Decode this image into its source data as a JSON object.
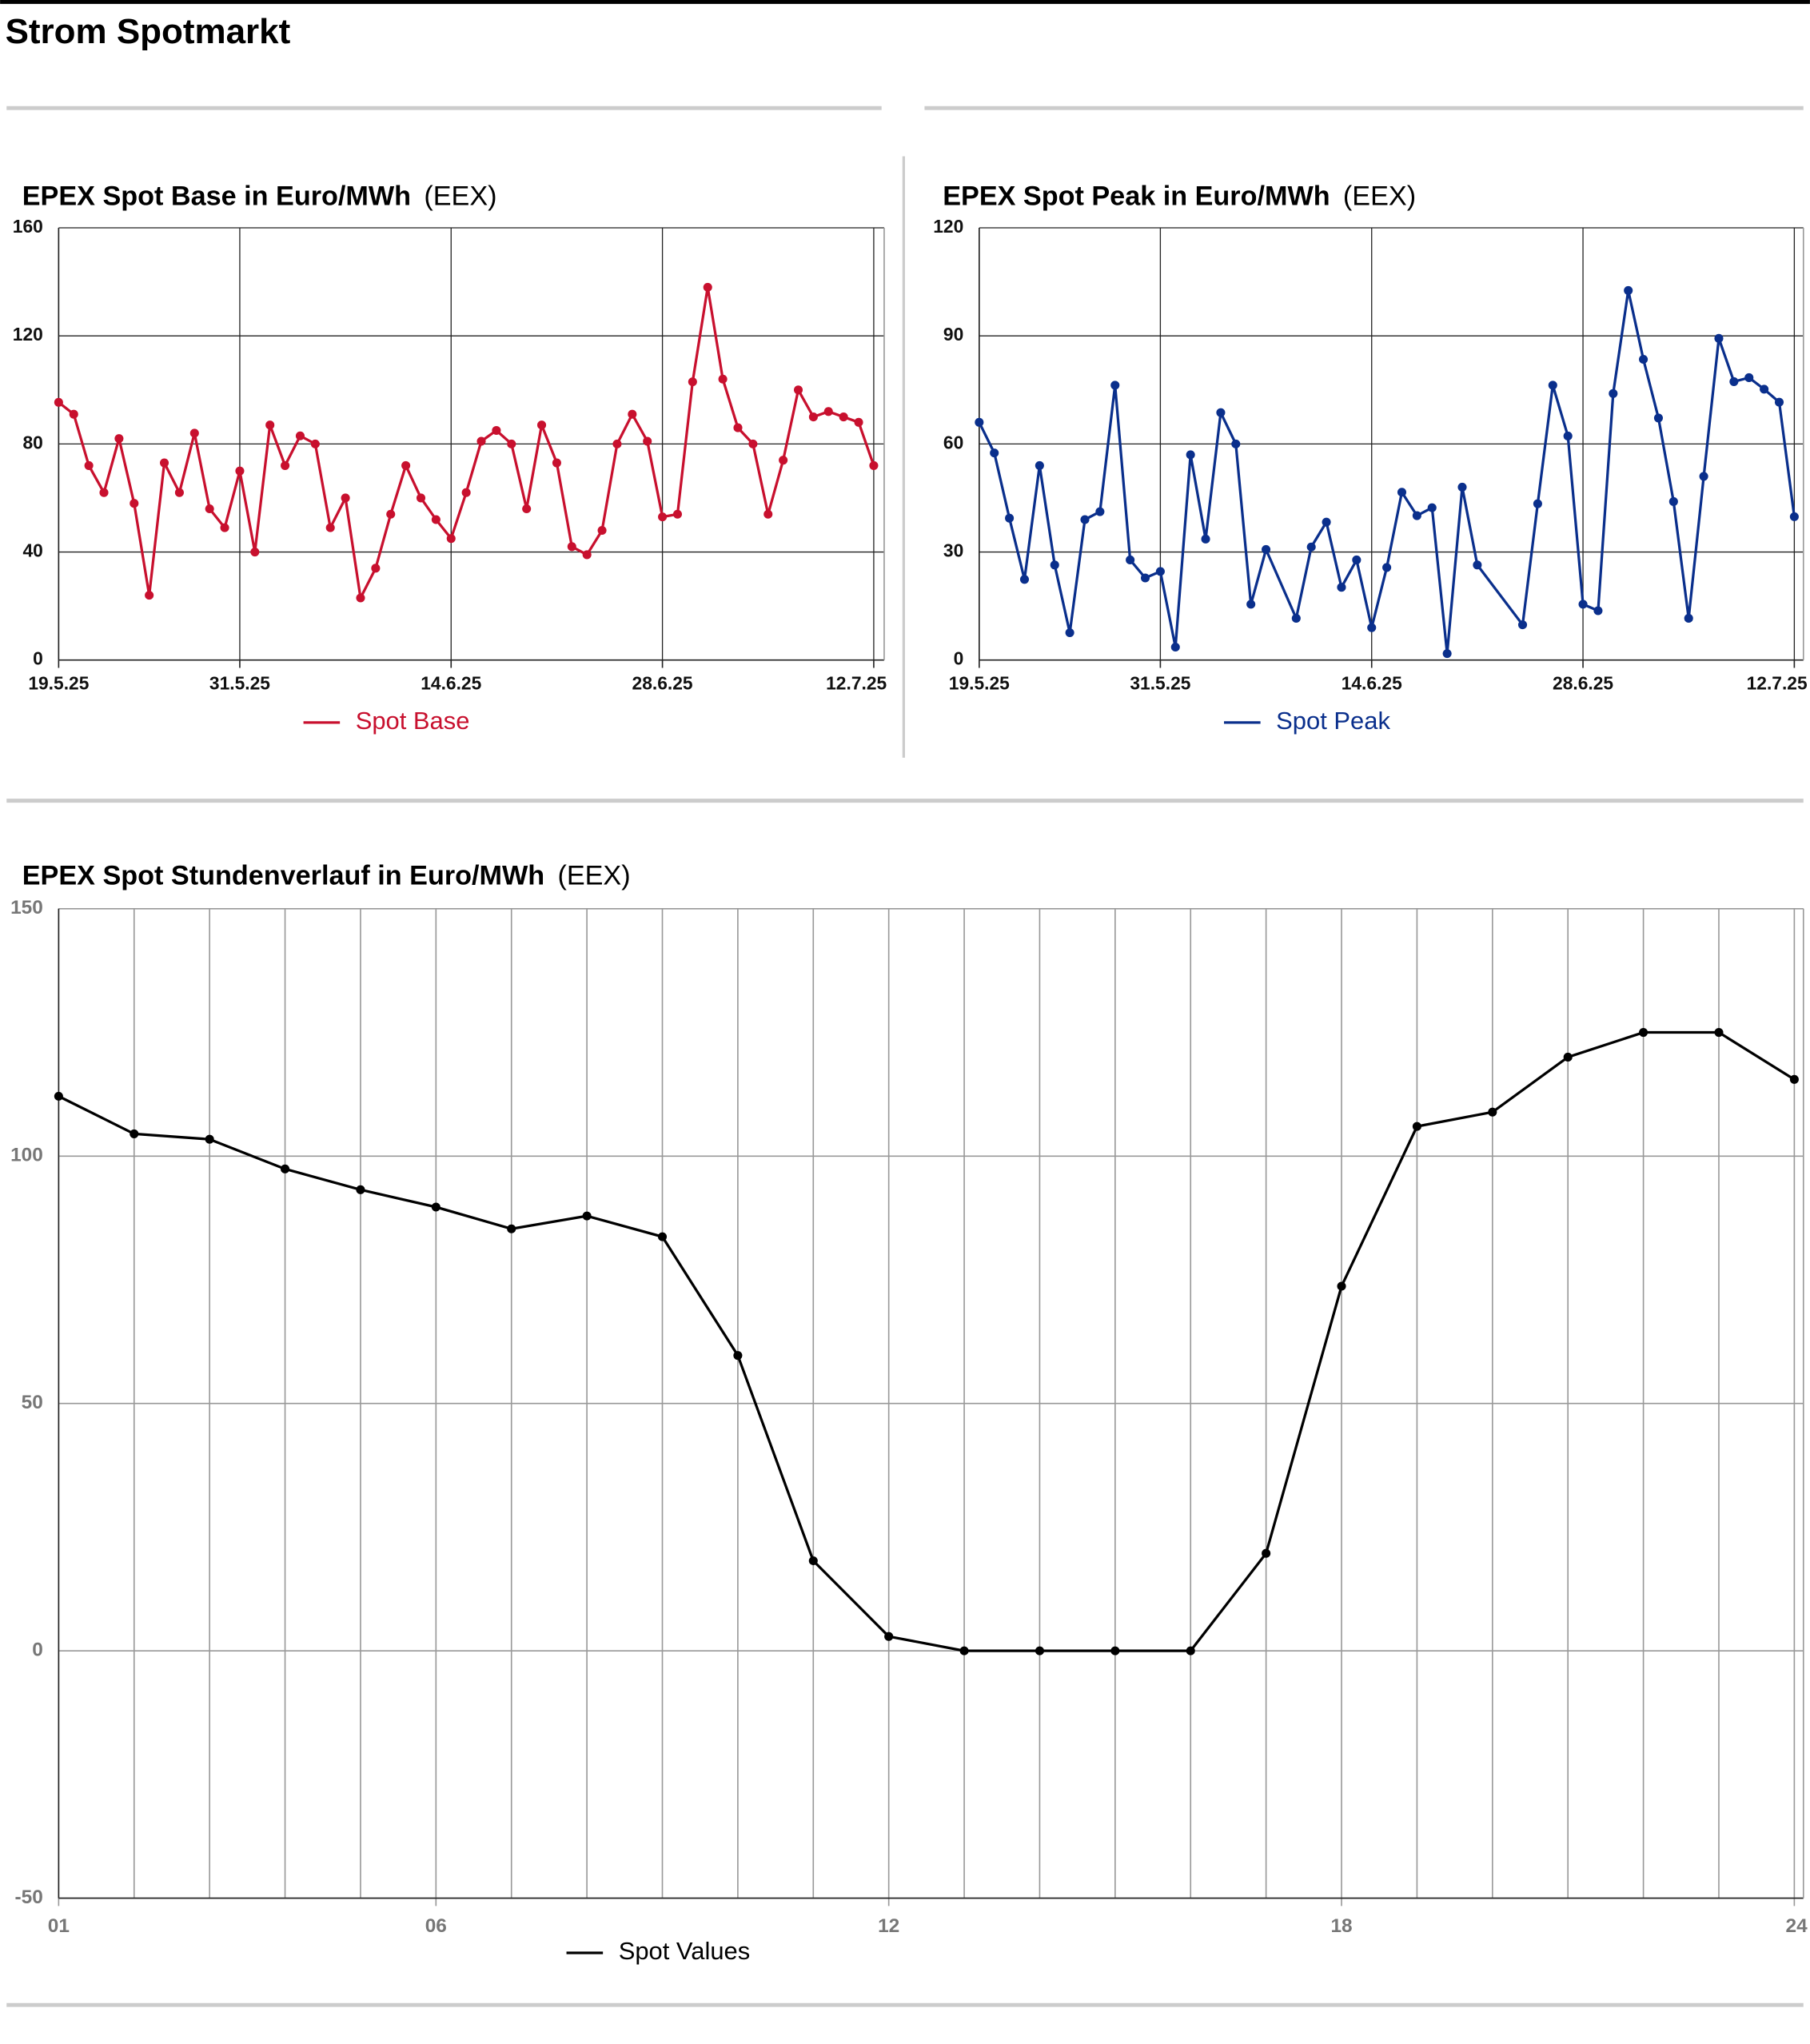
{
  "title": "Strom Spotmarkt",
  "chart_data": [
    {
      "type": "line",
      "title": "EPEX Spot Base in Euro/MWh",
      "source": "(EEX)",
      "x": [
        "19.5.25",
        "20.5.25",
        "21.5.25",
        "22.5.25",
        "23.5.25",
        "24.5.25",
        "25.5.25",
        "26.5.25",
        "27.5.25",
        "28.5.25",
        "29.5.25",
        "30.5.25",
        "31.5.25",
        "1.6.25",
        "2.6.25",
        "3.6.25",
        "4.6.25",
        "5.6.25",
        "6.6.25",
        "7.6.25",
        "8.6.25",
        "9.6.25",
        "10.6.25",
        "11.6.25",
        "12.6.25",
        "13.6.25",
        "14.6.25",
        "15.6.25",
        "16.6.25",
        "17.6.25",
        "18.6.25",
        "19.6.25",
        "20.6.25",
        "21.6.25",
        "22.6.25",
        "23.6.25",
        "24.6.25",
        "25.6.25",
        "26.6.25",
        "27.6.25",
        "28.6.25",
        "29.6.25",
        "30.6.25",
        "1.7.25",
        "2.7.25",
        "3.7.25",
        "4.7.25",
        "5.7.25",
        "6.7.25",
        "7.7.25",
        "8.7.25",
        "9.7.25",
        "10.7.25",
        "11.7.25",
        "12.7.25"
      ],
      "series": [
        {
          "name": "Spot Base",
          "color": "#c8102e",
          "values": [
            95.4,
            91,
            72,
            62,
            82,
            58,
            24,
            73,
            62,
            84,
            56,
            49,
            70,
            40,
            87,
            72,
            83,
            80,
            49,
            60,
            23,
            34,
            54,
            72,
            60,
            52,
            45,
            62,
            81,
            85,
            80,
            56,
            87,
            73,
            42,
            39,
            48,
            80,
            91,
            81,
            53,
            54,
            103,
            138,
            104,
            86,
            80,
            54,
            74,
            100,
            90,
            92,
            90,
            88,
            72
          ]
        }
      ],
      "xlim": [
        "19.5.25",
        "12.7.25"
      ],
      "xticks": [
        "19.5.25",
        "31.5.25",
        "14.6.25",
        "28.6.25",
        "12.7.25"
      ],
      "ylim": [
        0,
        160
      ],
      "yticks": [
        0,
        40,
        80,
        120,
        160
      ],
      "grid": true
    },
    {
      "type": "line",
      "title": "EPEX Spot Peak in Euro/MWh",
      "source": "(EEX)",
      "x": [
        "19.5.25",
        "20.5.25",
        "21.5.25",
        "22.5.25",
        "23.5.25",
        "24.5.25",
        "25.5.25",
        "26.5.25",
        "27.5.25",
        "28.5.25",
        "29.5.25",
        "30.5.25",
        "31.5.25",
        "1.6.25",
        "2.6.25",
        "3.6.25",
        "4.6.25",
        "5.6.25",
        "6.6.25",
        "7.6.25",
        "9.6.25",
        "10.6.25",
        "11.6.25",
        "12.6.25",
        "13.6.25",
        "14.6.25",
        "15.6.25",
        "16.6.25",
        "17.6.25",
        "18.6.25",
        "19.6.25",
        "20.6.25",
        "21.6.25",
        "24.6.25",
        "25.6.25",
        "26.6.25",
        "27.6.25",
        "28.6.25",
        "29.6.25",
        "30.6.25",
        "1.7.25",
        "2.7.25",
        "3.7.25",
        "4.7.25",
        "5.7.25",
        "6.7.25",
        "7.7.25",
        "8.7.25",
        "9.7.25",
        "10.7.25",
        "11.7.25",
        "12.7.25"
      ],
      "series": [
        {
          "name": "Spot Peak",
          "color": "#0a2f8c",
          "values": [
            66,
            57.5,
            39.4,
            22.4,
            54,
            26.4,
            7.6,
            39,
            41.2,
            76.3,
            27.8,
            22.8,
            24.6,
            3.6,
            57,
            33.6,
            68.7,
            60,
            15.5,
            30.7,
            11.6,
            31.4,
            38.3,
            20.2,
            27.8,
            9,
            25.7,
            46.6,
            40.1,
            42.3,
            1.8,
            48,
            26.4,
            9.8,
            43.4,
            76.3,
            62.2,
            15.5,
            13.7,
            74,
            102.6,
            83.5,
            67.2,
            44,
            11.6,
            51,
            89.3,
            77.3,
            78.4,
            75.2,
            71.6,
            39.8
          ]
        }
      ],
      "xlim": [
        "19.5.25",
        "12.7.25"
      ],
      "xticks": [
        "19.5.25",
        "31.5.25",
        "14.6.25",
        "28.6.25",
        "12.7.25"
      ],
      "ylim": [
        0,
        120
      ],
      "yticks": [
        0,
        30,
        60,
        90,
        120
      ],
      "grid": true
    },
    {
      "type": "line",
      "title": "EPEX Spot Stundenverlauf in Euro/MWh",
      "source": "(EEX)",
      "x": [
        1,
        2,
        3,
        4,
        5,
        6,
        7,
        8,
        9,
        10,
        11,
        12,
        13,
        14,
        15,
        16,
        17,
        18,
        19,
        20,
        21,
        22,
        23,
        24
      ],
      "series": [
        {
          "name": "Spot Values",
          "color": "#000000",
          "values": [
            112.1,
            104.5,
            103.4,
            97.4,
            93.2,
            89.7,
            85.3,
            87.9,
            83.7,
            59.7,
            18.2,
            2.9,
            0,
            0,
            0,
            0,
            19.7,
            73.7,
            106,
            108.9,
            120,
            125,
            125,
            115.5
          ]
        }
      ],
      "xlim": [
        1,
        24
      ],
      "xticks": [
        {
          "value": 1,
          "label": "01"
        },
        {
          "value": 6,
          "label": "06"
        },
        {
          "value": 12,
          "label": "12"
        },
        {
          "value": 18,
          "label": "18"
        },
        {
          "value": 24,
          "label": "24"
        }
      ],
      "ylim": [
        -50,
        150
      ],
      "yticks": [
        -50,
        0,
        50,
        100,
        150
      ],
      "grid": true
    }
  ]
}
